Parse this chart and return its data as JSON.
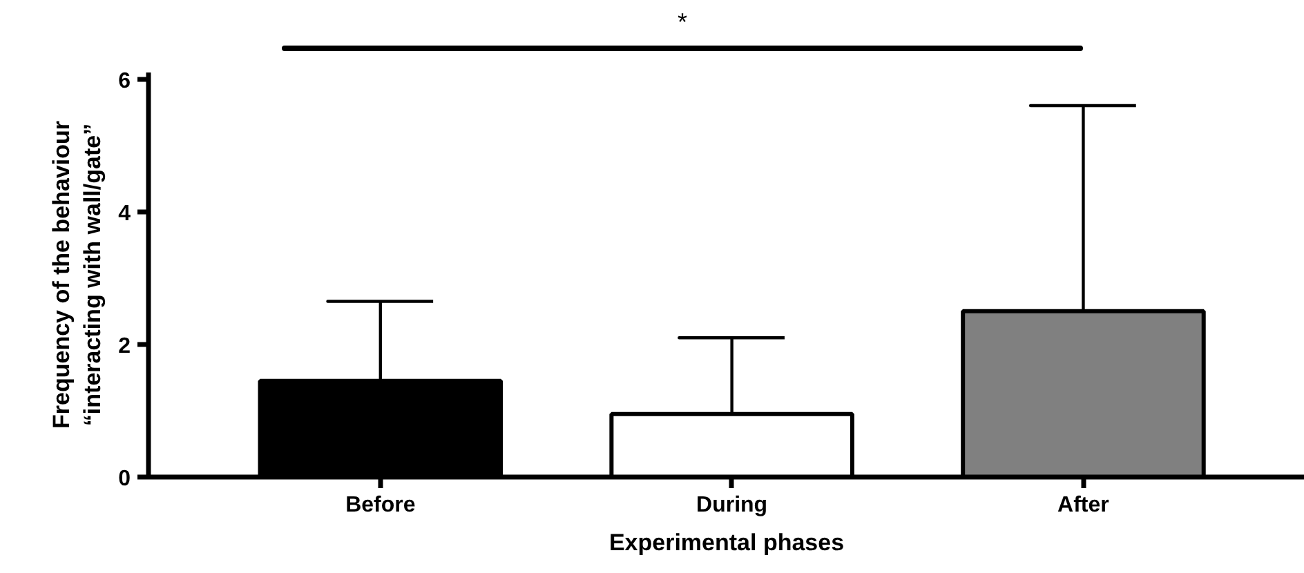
{
  "chart_data": {
    "type": "bar",
    "categories": [
      "Before",
      "During",
      "After"
    ],
    "values": [
      1.45,
      0.95,
      2.5
    ],
    "errors": [
      [
        1.45,
        2.65
      ],
      [
        0.95,
        2.1
      ],
      [
        2.5,
        5.6
      ]
    ],
    "colors": [
      "#000000",
      "#ffffff",
      "#808080"
    ],
    "xlabel": "Experimental phases",
    "ylabel": "Frequency of the behaviour\n“interacting with wall/gate”",
    "ylim": [
      0,
      6.1
    ],
    "yticks": [
      0,
      2,
      4,
      6
    ],
    "annotations": [
      "*"
    ],
    "grid": false
  }
}
